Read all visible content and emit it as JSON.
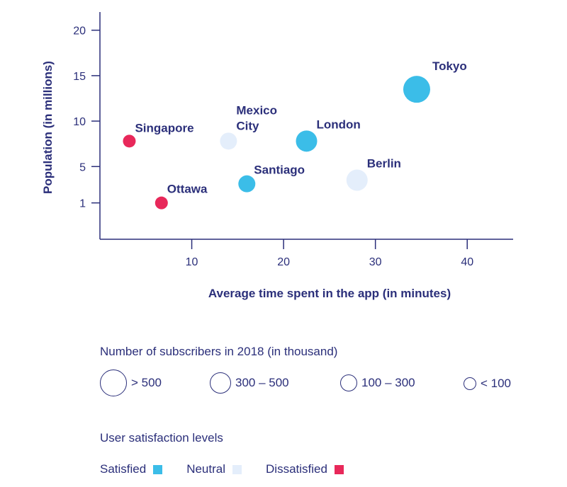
{
  "chart_data": {
    "type": "scatter",
    "title": "",
    "xlabel": "Average time spent in the app (in minutes)",
    "ylabel": "Population (in millions)",
    "xlim": [
      0,
      45
    ],
    "ylim": [
      -3,
      22
    ],
    "x_ticks": [
      10,
      20,
      30,
      40
    ],
    "y_ticks": [
      1,
      5,
      10,
      15,
      20
    ],
    "grid": false,
    "points": [
      {
        "label": "Tokyo",
        "x": 34.5,
        "y": 13.5,
        "subscribers": "> 500",
        "satisfaction": "Satisfied"
      },
      {
        "label": "London",
        "x": 22.5,
        "y": 7.8,
        "subscribers": "300 – 500",
        "satisfaction": "Satisfied"
      },
      {
        "label": "Santiago",
        "x": 16,
        "y": 3.1,
        "subscribers": "100 – 300",
        "satisfaction": "Satisfied"
      },
      {
        "label": "Berlin",
        "x": 28,
        "y": 3.5,
        "subscribers": "300 – 500",
        "satisfaction": "Neutral"
      },
      {
        "label": "Mexico City",
        "x": 14,
        "y": 7.8,
        "subscribers": "100 – 300",
        "satisfaction": "Neutral"
      },
      {
        "label": "Singapore",
        "x": 3.2,
        "y": 7.8,
        "subscribers": "< 100",
        "satisfaction": "Dissatisfied"
      },
      {
        "label": "Ottawa",
        "x": 6.7,
        "y": 1,
        "subscribers": "< 100",
        "satisfaction": "Dissatisfied"
      }
    ]
  },
  "legend": {
    "size_title": "Number of subscribers in 2018 (in thousand)",
    "size_items": [
      {
        "label": "> 500",
        "radius": 19
      },
      {
        "label": "300 – 500",
        "radius": 15
      },
      {
        "label": "100 – 300",
        "radius": 12
      },
      {
        "label": "< 100",
        "radius": 9
      }
    ],
    "satisfaction_title": "User satisfaction levels",
    "satisfaction_items": [
      {
        "label": "Satisfied",
        "color": "#3bbde8"
      },
      {
        "label": "Neutral",
        "color": "#e4eefb"
      },
      {
        "label": "Dissatisfied",
        "color": "#e8285a"
      }
    ]
  }
}
